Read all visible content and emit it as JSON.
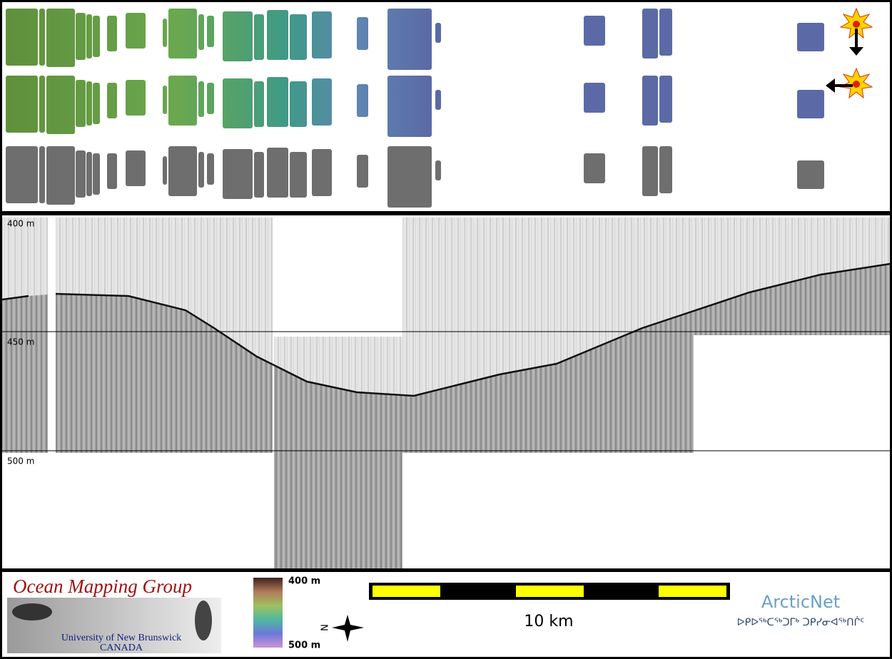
{
  "profile": {
    "depth_labels": [
      "400 m",
      "450 m",
      "500 m"
    ]
  },
  "footer": {
    "logo_title": "Ocean Mapping Group",
    "logo_university": "University of New Brunswick",
    "logo_country": "CANADA",
    "colorbar_top": "400 m",
    "colorbar_bottom": "500 m",
    "north": "N",
    "scale_label": "10 km",
    "partner": "ArcticNet",
    "partner_inuktitut": "ᐅᑭᐅᖅᑕᖅᑐᒥᒃ ᑐᑭᓯᓂᐊᖅᑎᒌᑦ"
  }
}
